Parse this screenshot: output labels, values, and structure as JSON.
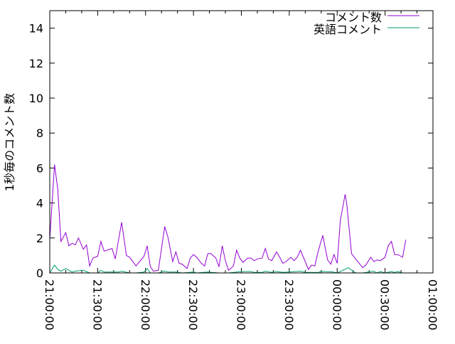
{
  "chart_data": {
    "type": "line",
    "title": "",
    "xlabel": "",
    "ylabel": "1秒毎のコメント数",
    "xlim": [
      "21:00:00",
      "01:00:00"
    ],
    "ylim": [
      0,
      15
    ],
    "x_ticks": [
      "21:00:00",
      "21:30:00",
      "22:00:00",
      "22:30:00",
      "23:00:00",
      "23:30:00",
      "00:00:00",
      "00:30:00",
      "01:00:00"
    ],
    "y_ticks": [
      "0",
      "2",
      "4",
      "6",
      "8",
      "10",
      "12",
      "14"
    ],
    "grid": false,
    "legend_position": "top-right",
    "series": [
      {
        "name": "コメント数",
        "color": "#9400d3",
        "points": [
          [
            "21:00:00",
            1.9
          ],
          [
            "21:03:00",
            6.2
          ],
          [
            "21:05:00",
            4.8
          ],
          [
            "21:07:00",
            1.8
          ],
          [
            "21:10:00",
            2.3
          ],
          [
            "21:12:00",
            1.55
          ],
          [
            "21:14:00",
            1.7
          ],
          [
            "21:16:00",
            1.6
          ],
          [
            "21:18:00",
            2.0
          ],
          [
            "21:21:00",
            1.35
          ],
          [
            "21:23:00",
            1.6
          ],
          [
            "21:25:00",
            0.4
          ],
          [
            "21:27:00",
            0.85
          ],
          [
            "21:30:00",
            0.95
          ],
          [
            "21:32:00",
            1.8
          ],
          [
            "21:34:00",
            1.25
          ],
          [
            "21:39:00",
            1.4
          ],
          [
            "21:41:00",
            0.8
          ],
          [
            "21:45:00",
            2.9
          ],
          [
            "21:48:00",
            1.0
          ],
          [
            "21:50:00",
            0.9
          ],
          [
            "21:54:00",
            0.4
          ],
          [
            "21:59:00",
            0.95
          ],
          [
            "22:01:00",
            1.55
          ],
          [
            "22:03:00",
            0.35
          ],
          [
            "22:05:00",
            0.1
          ],
          [
            "22:08:00",
            0.15
          ],
          [
            "22:12:00",
            2.65
          ],
          [
            "22:14:00",
            2.05
          ],
          [
            "22:17:00",
            0.65
          ],
          [
            "22:19:00",
            1.2
          ],
          [
            "22:21:00",
            0.55
          ],
          [
            "22:23:00",
            0.5
          ],
          [
            "22:26:00",
            0.25
          ],
          [
            "22:28:00",
            0.85
          ],
          [
            "22:30:00",
            1.05
          ],
          [
            "22:32:00",
            0.9
          ],
          [
            "22:35:00",
            0.55
          ],
          [
            "22:37:00",
            0.4
          ],
          [
            "22:39:00",
            1.1
          ],
          [
            "22:41:00",
            1.1
          ],
          [
            "22:44:00",
            0.85
          ],
          [
            "22:46:00",
            0.35
          ],
          [
            "22:48:00",
            1.55
          ],
          [
            "22:50:00",
            0.7
          ],
          [
            "22:52:00",
            0.15
          ],
          [
            "22:55:00",
            0.4
          ],
          [
            "22:57:00",
            1.3
          ],
          [
            "22:59:00",
            0.85
          ],
          [
            "23:01:00",
            0.6
          ],
          [
            "23:04:00",
            0.85
          ],
          [
            "23:06:00",
            0.85
          ],
          [
            "23:08:00",
            0.7
          ],
          [
            "23:10:00",
            0.8
          ],
          [
            "23:13:00",
            0.85
          ],
          [
            "23:15:00",
            1.4
          ],
          [
            "23:17:00",
            0.8
          ],
          [
            "23:19:00",
            0.7
          ],
          [
            "23:22:00",
            1.2
          ],
          [
            "23:24:00",
            0.9
          ],
          [
            "23:26:00",
            0.55
          ],
          [
            "23:28:00",
            0.65
          ],
          [
            "23:31:00",
            0.9
          ],
          [
            "23:33:00",
            0.7
          ],
          [
            "23:35:00",
            0.9
          ],
          [
            "23:37:00",
            1.3
          ],
          [
            "23:40:00",
            0.65
          ],
          [
            "23:42:00",
            0.2
          ],
          [
            "23:44:00",
            0.45
          ],
          [
            "23:46:00",
            0.4
          ],
          [
            "23:48:00",
            1.2
          ],
          [
            "23:51:00",
            2.15
          ],
          [
            "23:54:00",
            0.75
          ],
          [
            "23:56:00",
            0.5
          ],
          [
            "23:58:00",
            1.05
          ],
          [
            "00:00:00",
            0.55
          ],
          [
            "00:02:00",
            3.0
          ],
          [
            "00:05:00",
            4.5
          ],
          [
            "00:06:00",
            3.95
          ],
          [
            "00:09:00",
            1.1
          ],
          [
            "00:12:00",
            0.75
          ],
          [
            "00:16:00",
            0.3
          ],
          [
            "00:18:00",
            0.45
          ],
          [
            "00:21:00",
            0.9
          ],
          [
            "00:23:00",
            0.65
          ],
          [
            "00:25:00",
            0.75
          ],
          [
            "00:27:00",
            0.7
          ],
          [
            "00:30:00",
            0.9
          ],
          [
            "00:32:00",
            1.55
          ],
          [
            "00:34:00",
            1.8
          ],
          [
            "00:36:00",
            1.05
          ],
          [
            "00:38:00",
            1.05
          ],
          [
            "00:41:00",
            0.9
          ],
          [
            "00:43:00",
            1.9
          ]
        ]
      },
      {
        "name": "英語コメント",
        "color": "#009e73",
        "points": [
          [
            "21:00:00",
            0
          ],
          [
            "21:03:00",
            0.45
          ],
          [
            "21:05:00",
            0.2
          ],
          [
            "21:07:00",
            0.1
          ],
          [
            "21:10:00",
            0.25
          ],
          [
            "21:14:00",
            0.05
          ],
          [
            "21:16:00",
            0.1
          ],
          [
            "21:21:00",
            0.15
          ],
          [
            "21:25:00",
            0
          ],
          [
            "21:30:00",
            0
          ],
          [
            "21:32:00",
            0.15
          ],
          [
            "21:34:00",
            0.05
          ],
          [
            "21:43:00",
            0.05
          ],
          [
            "21:45:00",
            0.1
          ],
          [
            "21:50:00",
            0
          ],
          [
            "21:54:00",
            0
          ],
          [
            "21:59:00",
            0.05
          ],
          [
            "22:01:00",
            0.25
          ],
          [
            "22:03:00",
            0
          ],
          [
            "22:08:00",
            0
          ],
          [
            "22:12:00",
            0.1
          ],
          [
            "22:14:00",
            0.05
          ],
          [
            "22:19:00",
            0.05
          ],
          [
            "22:23:00",
            0
          ],
          [
            "22:30:00",
            0.05
          ],
          [
            "22:32:00",
            0
          ],
          [
            "22:39:00",
            0.05
          ],
          [
            "22:46:00",
            0
          ],
          [
            "22:52:00",
            0
          ],
          [
            "22:57:00",
            0.05
          ],
          [
            "23:01:00",
            0.08
          ],
          [
            "23:06:00",
            0.08
          ],
          [
            "23:08:00",
            0.03
          ],
          [
            "23:13:00",
            0.03
          ],
          [
            "23:15:00",
            0.1
          ],
          [
            "23:19:00",
            0.03
          ],
          [
            "23:22:00",
            0.08
          ],
          [
            "23:26:00",
            0.03
          ],
          [
            "23:37:00",
            0.1
          ],
          [
            "23:40:00",
            0.03
          ],
          [
            "23:48:00",
            0.03
          ],
          [
            "23:50:00",
            0.08
          ],
          [
            "23:57:00",
            0.06
          ],
          [
            "00:00:00",
            0
          ],
          [
            "00:02:00",
            0.08
          ],
          [
            "00:07:00",
            0.3
          ],
          [
            "00:10:00",
            0.08
          ],
          [
            "00:12:00",
            0
          ],
          [
            "00:16:00",
            0
          ],
          [
            "00:23:00",
            0.1
          ],
          [
            "00:25:00",
            0
          ],
          [
            "00:27:00",
            0.08
          ],
          [
            "00:30:00",
            0
          ],
          [
            "00:34:00",
            0.08
          ],
          [
            "00:36:00",
            0.03
          ],
          [
            "00:38:00",
            0.08
          ],
          [
            "00:41:00",
            0
          ]
        ]
      }
    ]
  }
}
